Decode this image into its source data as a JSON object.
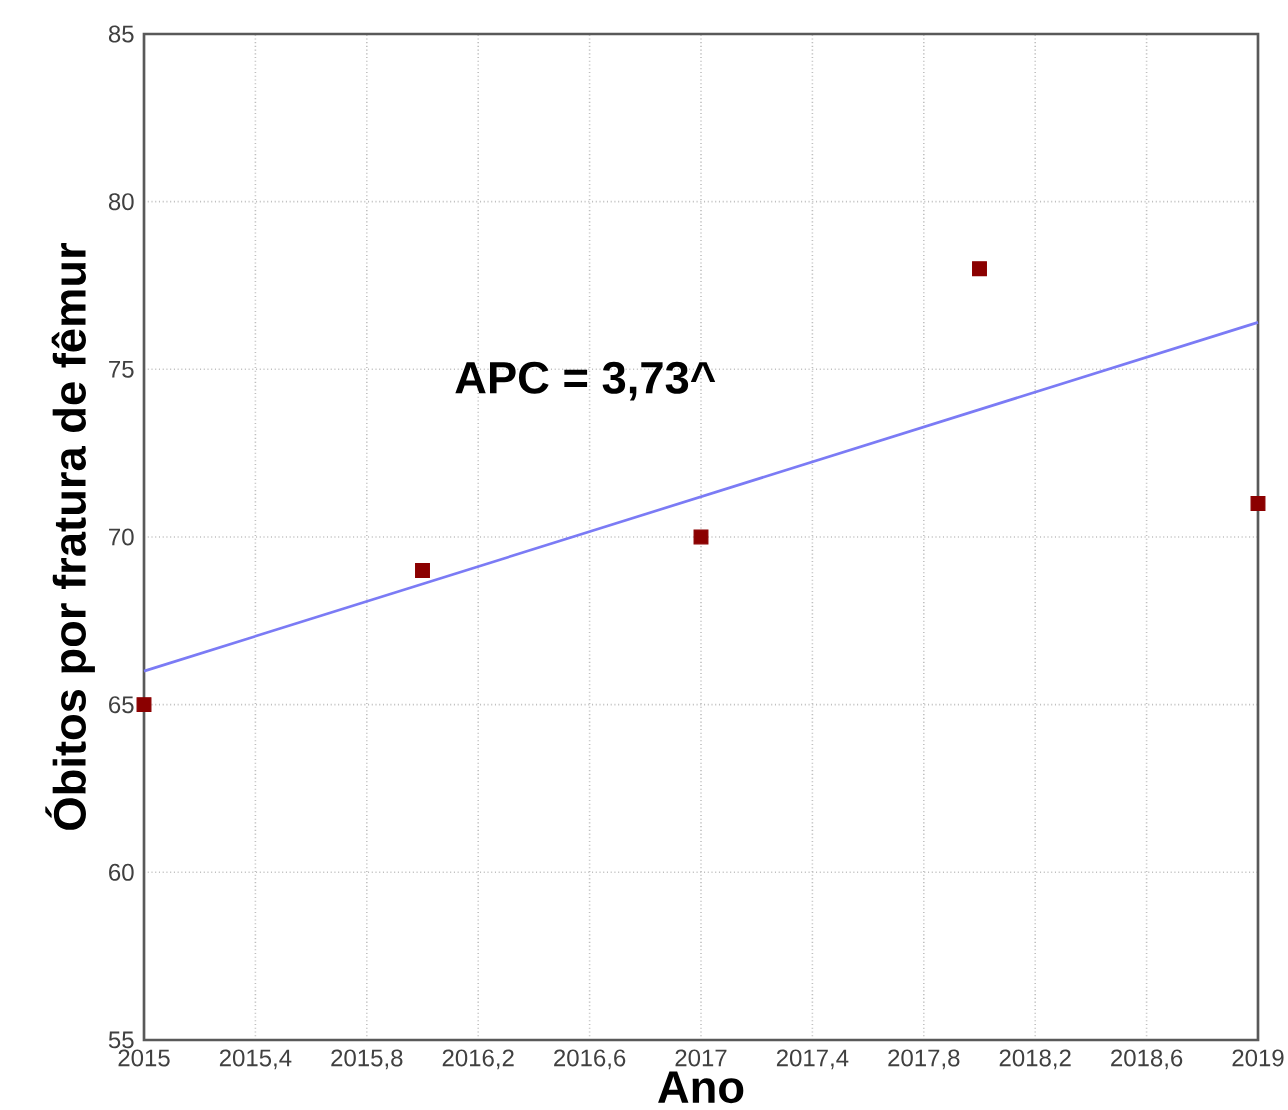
{
  "chart_data": {
    "type": "scatter",
    "xlabel": "Ano",
    "ylabel": "Óbitos por fratura de fêmur",
    "annotations": [
      "APC = 3,73^"
    ],
    "xlim": [
      2015,
      2019
    ],
    "xticks": [
      2015,
      {
        "value": 2015.4,
        "label": "2015,4"
      },
      {
        "value": 2015.8,
        "label": "2015,8"
      },
      {
        "value": 2016.2,
        "label": "2016,2"
      },
      {
        "value": 2016.6,
        "label": "2016,6"
      },
      2017,
      {
        "value": 2017.4,
        "label": "2017,4"
      },
      {
        "value": 2017.8,
        "label": "2017,8"
      },
      {
        "value": 2018.2,
        "label": "2018,2"
      },
      {
        "value": 2018.6,
        "label": "2018,6"
      },
      2019
    ],
    "ylim": [
      55,
      85
    ],
    "yticks": [
      55,
      60,
      65,
      70,
      75,
      80,
      85
    ],
    "grid": true,
    "marker": "square",
    "series": [
      {
        "color": "#8b0000",
        "x": [
          2015,
          2016,
          2017,
          2018,
          2019
        ],
        "values": [
          65,
          69,
          70,
          78,
          71
        ]
      },
      {
        "type": "line",
        "color": "#7b7bf5",
        "marker": "none",
        "x": [
          2015,
          2019
        ],
        "values": [
          66.0,
          76.4
        ]
      }
    ]
  }
}
